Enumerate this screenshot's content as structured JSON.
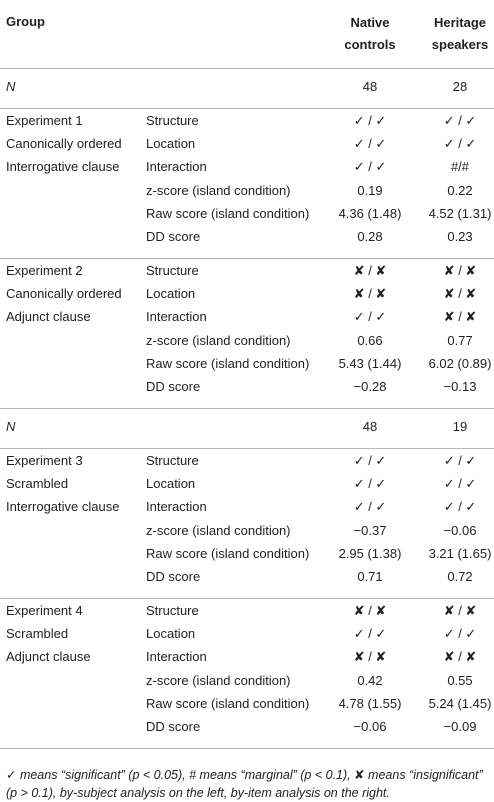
{
  "table": {
    "header": {
      "group": "Group",
      "native": "Native controls",
      "heritage": "Heritage speakers"
    },
    "blocks": [
      {
        "n": "N",
        "native": "48",
        "heritage": "28"
      },
      {
        "group": [
          "Experiment 1",
          "Canonically ordered",
          "Interrogative clause"
        ],
        "rows": [
          [
            "Structure",
            "✓ / ✓",
            "✓ / ✓"
          ],
          [
            "Location",
            "✓ / ✓",
            "✓ / ✓"
          ],
          [
            "Interaction",
            "✓ / ✓",
            "#/#"
          ],
          [
            "z-score (island condition)",
            "0.19",
            "0.22"
          ],
          [
            "Raw score (island condition)",
            "4.36 (1.48)",
            "4.52 (1.31)"
          ],
          [
            "DD score",
            "0.28",
            "0.23"
          ]
        ]
      },
      {
        "group": [
          "Experiment 2",
          "Canonically ordered",
          "Adjunct clause"
        ],
        "rows": [
          [
            "Structure",
            "✘ / ✘",
            "✘ / ✘"
          ],
          [
            "Location",
            "✘ / ✘",
            "✘ / ✘"
          ],
          [
            "Interaction",
            "✓ / ✓",
            "✘ / ✘"
          ],
          [
            "z-score (island condition)",
            "0.66",
            "0.77"
          ],
          [
            "Raw score (island condition)",
            "5.43 (1.44)",
            "6.02 (0.89)"
          ],
          [
            "DD score",
            "−0.28",
            "−0.13"
          ]
        ]
      },
      {
        "n": "N",
        "native": "48",
        "heritage": "19"
      },
      {
        "group": [
          "Experiment 3",
          "Scrambled",
          "Interrogative clause"
        ],
        "rows": [
          [
            "Structure",
            "✓ / ✓",
            "✓ / ✓"
          ],
          [
            "Location",
            "✓ / ✓",
            "✓ / ✓"
          ],
          [
            "Interaction",
            "✓ / ✓",
            "✓ / ✓"
          ],
          [
            "z-score (island condition)",
            "−0.37",
            "−0.06"
          ],
          [
            "Raw score (island condition)",
            "2.95 (1.38)",
            "3.21 (1.65)"
          ],
          [
            "DD score",
            "0.71",
            "0.72"
          ]
        ]
      },
      {
        "group": [
          "Experiment 4",
          "Scrambled",
          "Adjunct clause"
        ],
        "rows": [
          [
            "Structure",
            "✘ / ✘",
            "✘ / ✘"
          ],
          [
            "Location",
            "✓ / ✓",
            "✓ / ✓"
          ],
          [
            "Interaction",
            "✘ / ✘",
            "✘ / ✘"
          ],
          [
            "z-score (island condition)",
            "0.42",
            "0.55"
          ],
          [
            "Raw score (island condition)",
            "4.78 (1.55)",
            "5.24 (1.45)"
          ],
          [
            "DD score",
            "−0.06",
            "−0.09"
          ]
        ]
      }
    ],
    "footnote": "✓ means “significant” (p < 0.05), # means “marginal” (p < 0.1), ✘ means “insignificant” (p > 0.1), by-subject analysis on the left, by-item analysis on the right."
  }
}
